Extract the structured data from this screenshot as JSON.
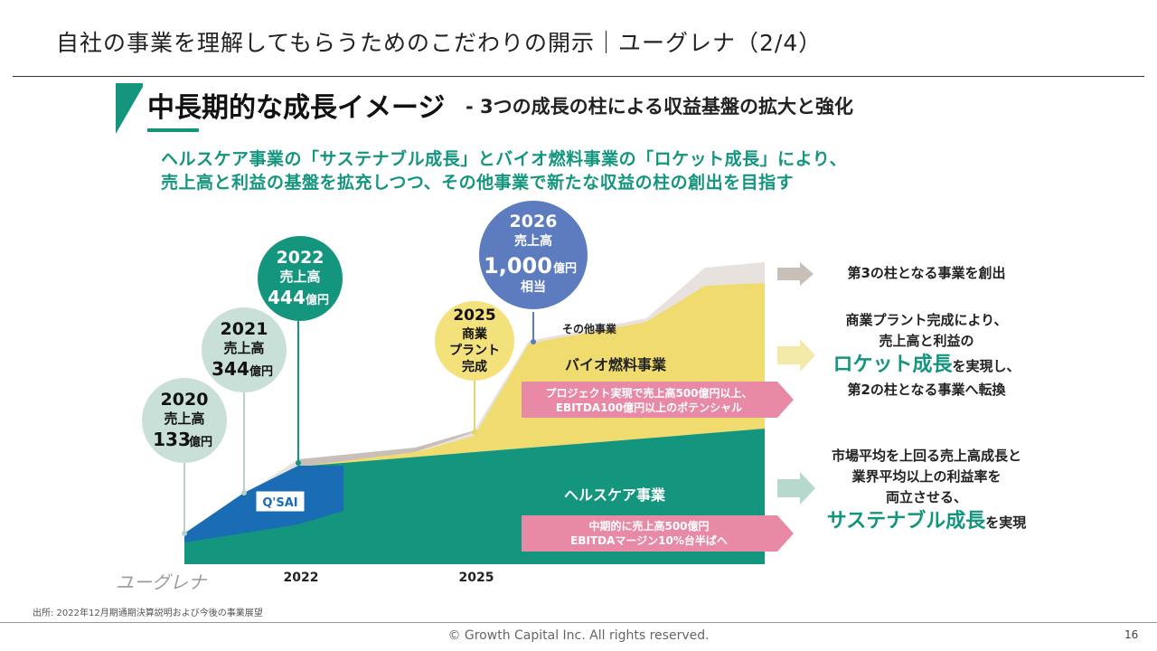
{
  "header": {
    "title": "自社の事業を理解してもらうためのこだわりの開示｜ユーグレナ（2/4）"
  },
  "slide": {
    "headline": "中長期的な成長イメージ",
    "subheadline": "- 3つの成長の柱による収益基盤の拡大と強化",
    "lead_line_1": "ヘルスケア事業の「サステナブル成長」とバイオ燃料事業の「ロケット成長」により、",
    "lead_line_2": "売上高と利益の基盤を拡充しつつ、その他事業で新たな収益の柱の創出を目指す"
  },
  "bubbles": [
    {
      "year": "2020",
      "label": "売上高",
      "value": "133",
      "unit": "億円"
    },
    {
      "year": "2021",
      "label": "売上高",
      "value": "344",
      "unit": "億円"
    },
    {
      "year": "2022",
      "label": "売上高",
      "value": "444",
      "unit": "億円"
    },
    {
      "year": "2025",
      "line1": "商業",
      "line2": "プラント",
      "line3": "完成"
    },
    {
      "year": "2026",
      "label": "売上高",
      "value": "1,000",
      "unit": "億円",
      "suffix": "相当"
    }
  ],
  "chart_labels": {
    "other": "その他事業",
    "bio": "バイオ燃料事業",
    "bio_banner_1": "プロジェクト実現で売上高500億円以上、",
    "bio_banner_2": "EBITDA100億円以上のポテンシャル",
    "health": "ヘルスケア事業",
    "health_banner_1": "中期的に売上高500億円",
    "health_banner_2": "EBITDAマージン10%台半ばへ",
    "qsai": "Q'SAI",
    "x_tick_2022": "2022",
    "x_tick_2025": "2025"
  },
  "right_column": {
    "item1": "第3の柱となる事業を創出",
    "item2_line1": "商業プラント完成により、",
    "item2_line2": "売上高と利益の",
    "item2_em": "ロケット成長",
    "item2_line3_suffix": "を実現し、",
    "item2_line4": "第2の柱となる事業へ転換",
    "item3_line1": "市場平均を上回る売上高成長と",
    "item3_line2": "業界平均以上の利益率を",
    "item3_line3": "両立させる、",
    "item3_em": "サステナブル成長",
    "item3_suffix": "を実現"
  },
  "footer": {
    "logo": "ユーグレナ",
    "source": "出所: 2022年12月期通期決算説明および今後の事業展望",
    "copyright": "© Growth Capital Inc. All rights reserved.",
    "page_number": "16"
  },
  "colors": {
    "accent_green": "#13957e",
    "yellow": "#f0dc6e",
    "blue": "#1a6db5",
    "other_gray": "#e8e2df",
    "pink": "#e88aa5",
    "bubble_2020": "#c8e0d8",
    "bubble_2022": "#13957e",
    "bubble_2025": "#f3e27c",
    "bubble_2026": "#5d7bbf"
  }
}
